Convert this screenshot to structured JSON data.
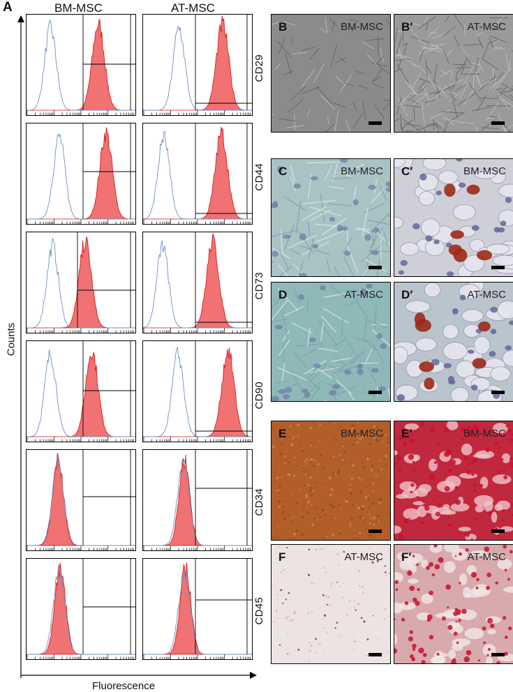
{
  "panel_a": {
    "letter": "A",
    "columns": [
      "BM-MSC",
      "AT-MSC"
    ],
    "markers": [
      "CD29",
      "CD44",
      "CD73",
      "CD90",
      "CD34",
      "CD45"
    ],
    "y_axis_label": "Counts",
    "x_axis_label": "Fluorescence"
  },
  "photos": [
    {
      "letter": "B",
      "tag": "BM-MSC"
    },
    {
      "letter": "B′",
      "tag": "AT-MSC"
    },
    {
      "letter": "C",
      "tag": "BM-MSC"
    },
    {
      "letter": "C′",
      "tag": "BM-MSC"
    },
    {
      "letter": "D",
      "tag": "AT-MSC"
    },
    {
      "letter": "D′",
      "tag": "AT-MSC"
    },
    {
      "letter": "E",
      "tag": "BM-MSC"
    },
    {
      "letter": "E′",
      "tag": "BM-MSC"
    },
    {
      "letter": "F",
      "tag": "AT-MSC"
    },
    {
      "letter": "F′",
      "tag": "AT-MSC"
    }
  ],
  "colors": {
    "isotype_line": "#6f8fc0",
    "marker_fill": "#f07272",
    "marker_line": "#d81010",
    "oil_red": "#9c2a1a",
    "alizarin": "#c8102e"
  }
}
